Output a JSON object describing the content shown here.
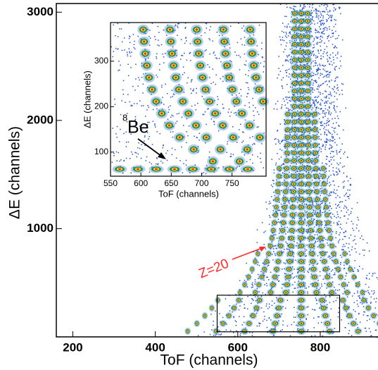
{
  "chart_data": [
    {
      "type": "density",
      "x_label": "ToF (channels)",
      "y_label": "ΔE (channels)",
      "xlim": [
        160,
        940
      ],
      "ylim": [
        0,
        3080
      ],
      "xticks": [
        200,
        400,
        600,
        800
      ],
      "yticks": [
        1000,
        2000,
        3000
      ],
      "annotation": {
        "text": "Z=20",
        "color": "#ff2a2a"
      }
    },
    {
      "type": "density",
      "x_label": "ToF (channels)",
      "y_label": "ΔE (channels)",
      "xlim": [
        550,
        806
      ],
      "ylim": [
        47,
        385
      ],
      "xticks": [
        550,
        600,
        650,
        700,
        750
      ],
      "yticks": [
        100,
        200,
        300
      ],
      "annotation": {
        "superscript": "8",
        "text": "Be",
        "color": "#000000"
      }
    }
  ]
}
